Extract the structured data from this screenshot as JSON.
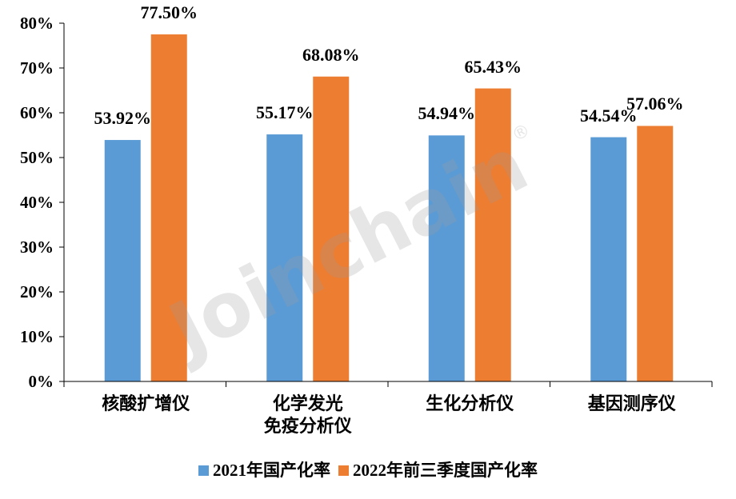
{
  "watermark": {
    "text": "Joinchain",
    "mark": "®"
  },
  "chart_data": {
    "type": "bar",
    "categories": [
      "核酸扩增仪",
      "化学发光\n免疫分析仪",
      "生化分析仪",
      "基因测序仪"
    ],
    "series": [
      {
        "name": "2021年国产化率",
        "color": "#5B9BD5",
        "values": [
          53.92,
          55.17,
          54.94,
          54.54
        ],
        "labels": [
          "53.92%",
          "55.17%",
          "54.94%",
          "54.54%"
        ]
      },
      {
        "name": "2022年前三季度国产化率",
        "color": "#ED7D31",
        "values": [
          77.5,
          68.08,
          65.43,
          57.06
        ],
        "labels": [
          "77.50%",
          "68.08%",
          "65.43%",
          "57.06%"
        ]
      }
    ],
    "ylim": [
      0,
      80
    ],
    "yticks": [
      0,
      10,
      20,
      30,
      40,
      50,
      60,
      70,
      80
    ],
    "ytick_labels": [
      "0%",
      "10%",
      "20%",
      "30%",
      "40%",
      "50%",
      "60%",
      "70%",
      "80%"
    ],
    "grid": false,
    "legend": "bottom"
  }
}
